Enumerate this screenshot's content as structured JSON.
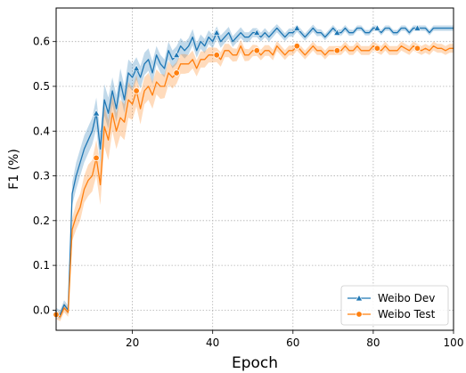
{
  "chart_data": {
    "type": "line",
    "xlabel": "Epoch",
    "ylabel": "F1 (%)",
    "xlim": [
      1,
      100
    ],
    "ylim": [
      -0.045,
      0.675
    ],
    "x_ticks": [
      20,
      40,
      60,
      80,
      100
    ],
    "y_ticks": [
      0.0,
      0.1,
      0.2,
      0.3,
      0.4,
      0.5,
      0.6
    ],
    "grid": true,
    "legend_position": "lower-right",
    "series": [
      {
        "name": "Weibo Dev",
        "color": "#1f77b4",
        "marker": "triangle",
        "marker_every": 10,
        "x": [
          1,
          2,
          3,
          4,
          5,
          6,
          7,
          8,
          9,
          10,
          11,
          12,
          13,
          14,
          15,
          16,
          17,
          18,
          19,
          20,
          21,
          22,
          23,
          24,
          25,
          26,
          27,
          28,
          29,
          30,
          31,
          32,
          33,
          34,
          35,
          36,
          37,
          38,
          39,
          40,
          41,
          42,
          43,
          44,
          45,
          46,
          47,
          48,
          49,
          50,
          51,
          52,
          53,
          54,
          55,
          56,
          57,
          58,
          59,
          60,
          61,
          62,
          63,
          64,
          65,
          66,
          67,
          68,
          69,
          70,
          71,
          72,
          73,
          74,
          75,
          76,
          77,
          78,
          79,
          80,
          81,
          82,
          83,
          84,
          85,
          86,
          87,
          88,
          89,
          90,
          91,
          92,
          93,
          94,
          95,
          96,
          97,
          98,
          99,
          100
        ],
        "y": [
          -0.005,
          -0.01,
          0.012,
          0.0,
          0.26,
          0.3,
          0.33,
          0.36,
          0.38,
          0.4,
          0.44,
          0.36,
          0.47,
          0.44,
          0.49,
          0.45,
          0.51,
          0.47,
          0.53,
          0.52,
          0.54,
          0.52,
          0.55,
          0.56,
          0.53,
          0.57,
          0.55,
          0.54,
          0.58,
          0.56,
          0.57,
          0.59,
          0.58,
          0.59,
          0.61,
          0.58,
          0.6,
          0.59,
          0.61,
          0.6,
          0.62,
          0.6,
          0.61,
          0.62,
          0.6,
          0.61,
          0.62,
          0.61,
          0.61,
          0.62,
          0.62,
          0.61,
          0.62,
          0.61,
          0.62,
          0.63,
          0.62,
          0.61,
          0.62,
          0.62,
          0.63,
          0.62,
          0.61,
          0.62,
          0.63,
          0.62,
          0.62,
          0.61,
          0.62,
          0.63,
          0.62,
          0.62,
          0.63,
          0.62,
          0.62,
          0.63,
          0.63,
          0.62,
          0.62,
          0.63,
          0.63,
          0.62,
          0.63,
          0.63,
          0.62,
          0.62,
          0.63,
          0.63,
          0.62,
          0.63,
          0.63,
          0.63,
          0.63,
          0.62,
          0.63,
          0.63,
          0.63,
          0.63,
          0.63,
          0.63
        ],
        "band": [
          0.01,
          0.01,
          0.01,
          0.01,
          0.025,
          0.03,
          0.03,
          0.03,
          0.03,
          0.03,
          0.035,
          0.035,
          0.035,
          0.035,
          0.03,
          0.03,
          0.03,
          0.03,
          0.03,
          0.03,
          0.025,
          0.025,
          0.025,
          0.025,
          0.025,
          0.02,
          0.02,
          0.02,
          0.02,
          0.02,
          0.02,
          0.018,
          0.018,
          0.018,
          0.018,
          0.016,
          0.016,
          0.016,
          0.015,
          0.015,
          0.014,
          0.014,
          0.013,
          0.013,
          0.012,
          0.012,
          0.012,
          0.011,
          0.011,
          0.01,
          0.01,
          0.01,
          0.01,
          0.01,
          0.01,
          0.009,
          0.009,
          0.009,
          0.009,
          0.009,
          0.008,
          0.008,
          0.008,
          0.008,
          0.008,
          0.008,
          0.007,
          0.007,
          0.007,
          0.007,
          0.007,
          0.007,
          0.007,
          0.007,
          0.006,
          0.006,
          0.006,
          0.006,
          0.006,
          0.006,
          0.006,
          0.006,
          0.006,
          0.006,
          0.006,
          0.006,
          0.006,
          0.006,
          0.006,
          0.006,
          0.006,
          0.006,
          0.006,
          0.006,
          0.006,
          0.006,
          0.006,
          0.006,
          0.006,
          0.006
        ]
      },
      {
        "name": "Weibo Test",
        "color": "#ff7f0e",
        "marker": "circle",
        "marker_every": 10,
        "x": [
          1,
          2,
          3,
          4,
          5,
          6,
          7,
          8,
          9,
          10,
          11,
          12,
          13,
          14,
          15,
          16,
          17,
          18,
          19,
          20,
          21,
          22,
          23,
          24,
          25,
          26,
          27,
          28,
          29,
          30,
          31,
          32,
          33,
          34,
          35,
          36,
          37,
          38,
          39,
          40,
          41,
          42,
          43,
          44,
          45,
          46,
          47,
          48,
          49,
          50,
          51,
          52,
          53,
          54,
          55,
          56,
          57,
          58,
          59,
          60,
          61,
          62,
          63,
          64,
          65,
          66,
          67,
          68,
          69,
          70,
          71,
          72,
          73,
          74,
          75,
          76,
          77,
          78,
          79,
          80,
          81,
          82,
          83,
          84,
          85,
          86,
          87,
          88,
          89,
          90,
          91,
          92,
          93,
          94,
          95,
          96,
          97,
          98,
          99,
          100
        ],
        "y": [
          -0.01,
          -0.015,
          0.005,
          -0.005,
          0.18,
          0.21,
          0.23,
          0.27,
          0.29,
          0.3,
          0.34,
          0.28,
          0.41,
          0.38,
          0.44,
          0.4,
          0.43,
          0.42,
          0.47,
          0.46,
          0.49,
          0.45,
          0.49,
          0.5,
          0.48,
          0.51,
          0.5,
          0.5,
          0.53,
          0.52,
          0.53,
          0.55,
          0.55,
          0.55,
          0.56,
          0.54,
          0.56,
          0.56,
          0.57,
          0.57,
          0.57,
          0.56,
          0.58,
          0.58,
          0.57,
          0.57,
          0.59,
          0.57,
          0.57,
          0.58,
          0.58,
          0.57,
          0.58,
          0.58,
          0.57,
          0.59,
          0.58,
          0.57,
          0.58,
          0.58,
          0.59,
          0.58,
          0.57,
          0.58,
          0.59,
          0.58,
          0.58,
          0.57,
          0.58,
          0.58,
          0.58,
          0.58,
          0.59,
          0.58,
          0.58,
          0.59,
          0.58,
          0.58,
          0.58,
          0.59,
          0.585,
          0.58,
          0.59,
          0.58,
          0.58,
          0.58,
          0.59,
          0.585,
          0.58,
          0.59,
          0.585,
          0.58,
          0.585,
          0.58,
          0.59,
          0.585,
          0.585,
          0.58,
          0.585,
          0.585
        ],
        "band": [
          0.01,
          0.01,
          0.01,
          0.01,
          0.025,
          0.03,
          0.03,
          0.03,
          0.035,
          0.035,
          0.04,
          0.045,
          0.045,
          0.045,
          0.04,
          0.04,
          0.04,
          0.04,
          0.04,
          0.035,
          0.035,
          0.035,
          0.03,
          0.03,
          0.03,
          0.028,
          0.028,
          0.026,
          0.026,
          0.025,
          0.024,
          0.022,
          0.022,
          0.02,
          0.02,
          0.018,
          0.018,
          0.018,
          0.017,
          0.017,
          0.016,
          0.016,
          0.015,
          0.015,
          0.015,
          0.014,
          0.014,
          0.014,
          0.013,
          0.013,
          0.012,
          0.012,
          0.012,
          0.012,
          0.012,
          0.011,
          0.011,
          0.011,
          0.011,
          0.011,
          0.01,
          0.01,
          0.01,
          0.01,
          0.01,
          0.01,
          0.01,
          0.01,
          0.01,
          0.01,
          0.01,
          0.01,
          0.01,
          0.01,
          0.01,
          0.01,
          0.01,
          0.01,
          0.01,
          0.01,
          0.01,
          0.01,
          0.01,
          0.01,
          0.01,
          0.01,
          0.01,
          0.01,
          0.01,
          0.01,
          0.01,
          0.01,
          0.01,
          0.01,
          0.01,
          0.01,
          0.01,
          0.01,
          0.01,
          0.01
        ]
      }
    ]
  }
}
